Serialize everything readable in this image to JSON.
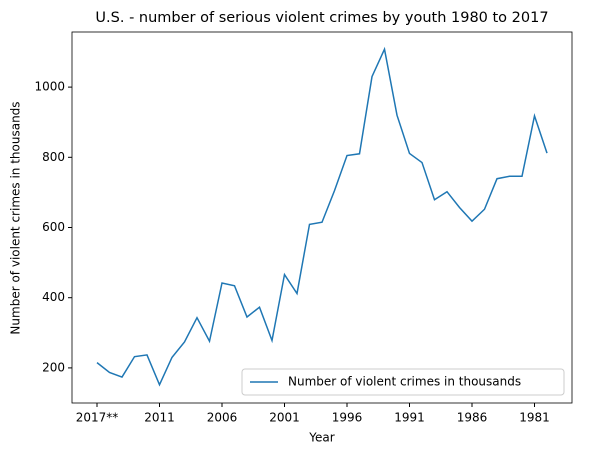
{
  "chart_data": {
    "type": "line",
    "title": "U.S. - number of serious violent crimes by youth 1980 to 2017",
    "x_label": "Year",
    "y_label": "Number of violent crimes in thousands",
    "categories": [
      "2017**",
      null,
      null,
      null,
      null,
      "2011",
      null,
      null,
      null,
      null,
      "2006",
      null,
      null,
      null,
      null,
      "2001",
      null,
      null,
      null,
      null,
      "1996",
      null,
      null,
      null,
      null,
      "1991",
      null,
      null,
      null,
      null,
      "1986",
      null,
      null,
      null,
      null,
      "1981",
      null
    ],
    "series": [
      {
        "name": "Number of violent crimes in thousands",
        "color": "#1f77b4",
        "values": [
          215,
          187,
          174,
          232,
          237,
          152,
          230,
          274,
          343,
          276,
          442,
          434,
          345,
          373,
          278,
          466,
          412,
          609,
          615,
          705,
          805,
          810,
          1030,
          1108,
          920,
          811,
          785,
          679,
          702,
          657,
          618,
          652,
          739,
          746,
          746,
          918,
          812
        ]
      }
    ],
    "ylim": [
      100,
      1157
    ],
    "yticks": [
      200,
      400,
      600,
      800,
      1000
    ],
    "legend": "lower right"
  }
}
